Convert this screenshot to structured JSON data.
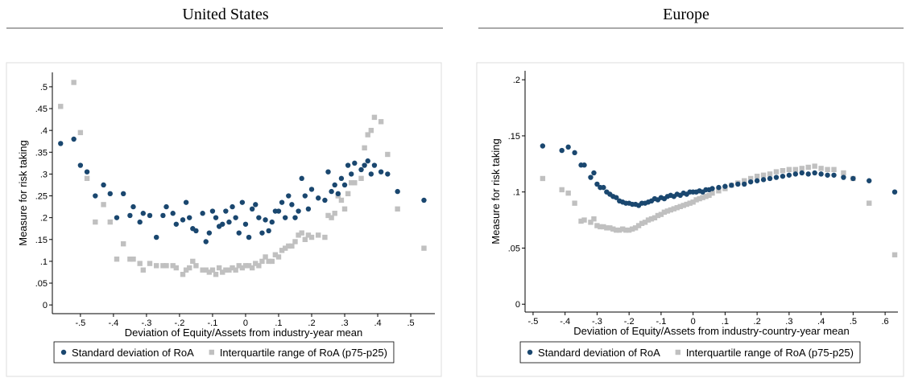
{
  "chart_data": [
    {
      "type": "scatter",
      "title": "United States",
      "x_label": "Deviation of Equity/Assets from industry-year mean",
      "y_label": "Measure for risk taking",
      "legend": "bottom",
      "x": [
        -0.56,
        -0.52,
        -0.5,
        -0.48,
        -0.455,
        -0.43,
        -0.41,
        -0.39,
        -0.37,
        -0.35,
        -0.34,
        -0.32,
        -0.31,
        -0.29,
        -0.27,
        -0.25,
        -0.24,
        -0.22,
        -0.21,
        -0.19,
        -0.18,
        -0.17,
        -0.16,
        -0.15,
        -0.13,
        -0.12,
        -0.11,
        -0.1,
        -0.09,
        -0.08,
        -0.07,
        -0.06,
        -0.05,
        -0.04,
        -0.03,
        -0.02,
        -0.01,
        0,
        0.01,
        0.02,
        0.03,
        0.04,
        0.05,
        0.06,
        0.07,
        0.08,
        0.09,
        0.1,
        0.11,
        0.12,
        0.13,
        0.14,
        0.15,
        0.16,
        0.17,
        0.18,
        0.19,
        0.2,
        0.22,
        0.24,
        0.25,
        0.26,
        0.27,
        0.28,
        0.29,
        0.3,
        0.31,
        0.32,
        0.33,
        0.35,
        0.36,
        0.37,
        0.38,
        0.39,
        0.41,
        0.43,
        0.46,
        0.54
      ],
      "series": [
        {
          "name": "Standard deviation of RoA",
          "color": "#1a476f",
          "marker": "circle",
          "values": [
            0.37,
            0.38,
            0.32,
            0.305,
            0.25,
            0.275,
            0.255,
            0.2,
            0.255,
            0.205,
            0.225,
            0.19,
            0.21,
            0.205,
            0.155,
            0.205,
            0.225,
            0.21,
            0.185,
            0.195,
            0.235,
            0.2,
            0.175,
            0.17,
            0.21,
            0.145,
            0.165,
            0.215,
            0.2,
            0.18,
            0.185,
            0.215,
            0.19,
            0.225,
            0.2,
            0.165,
            0.235,
            0.185,
            0.155,
            0.22,
            0.23,
            0.2,
            0.165,
            0.195,
            0.17,
            0.19,
            0.215,
            0.215,
            0.235,
            0.2,
            0.25,
            0.23,
            0.2,
            0.215,
            0.29,
            0.25,
            0.22,
            0.265,
            0.245,
            0.24,
            0.305,
            0.26,
            0.275,
            0.255,
            0.29,
            0.275,
            0.32,
            0.3,
            0.325,
            0.31,
            0.32,
            0.33,
            0.3,
            0.32,
            0.305,
            0.3,
            0.26,
            0.24
          ]
        },
        {
          "name": "Interquartile range of RoA (p75-p25)",
          "color": "#c0c0c0",
          "marker": "square",
          "values": [
            0.455,
            0.51,
            0.395,
            0.29,
            0.19,
            0.23,
            0.19,
            0.105,
            0.14,
            0.105,
            0.105,
            0.095,
            0.08,
            0.095,
            0.09,
            0.09,
            0.09,
            0.09,
            0.085,
            0.07,
            0.08,
            0.085,
            0.1,
            0.09,
            0.08,
            0.08,
            0.075,
            0.08,
            0.07,
            0.085,
            0.075,
            0.08,
            0.08,
            0.085,
            0.08,
            0.09,
            0.085,
            0.09,
            0.09,
            0.085,
            0.095,
            0.09,
            0.1,
            0.11,
            0.1,
            0.1,
            0.115,
            0.11,
            0.125,
            0.13,
            0.135,
            0.135,
            0.145,
            0.16,
            0.165,
            0.15,
            0.16,
            0.155,
            0.16,
            0.155,
            0.205,
            0.2,
            0.21,
            0.25,
            0.24,
            0.22,
            0.255,
            0.28,
            0.28,
            0.29,
            0.36,
            0.39,
            0.4,
            0.43,
            0.42,
            0.345,
            0.22,
            0.13
          ]
        }
      ],
      "xlim": [
        -0.585,
        0.573
      ],
      "ylim": [
        -0.02,
        0.533
      ],
      "xticks": [
        {
          "value": -0.5,
          "label": "-.5"
        },
        {
          "value": -0.4,
          "label": "-.4"
        },
        {
          "value": -0.3,
          "label": "-.3"
        },
        {
          "value": -0.2,
          "label": "-.2"
        },
        {
          "value": -0.1,
          "label": "-.1"
        },
        0,
        {
          "value": 0.1,
          "label": ".1"
        },
        {
          "value": 0.2,
          "label": ".2"
        },
        {
          "value": 0.3,
          "label": ".3"
        },
        {
          "value": 0.4,
          "label": ".4"
        },
        {
          "value": 0.5,
          "label": ".5"
        }
      ],
      "yticks": [
        0,
        {
          "value": 0.05,
          "label": ".05"
        },
        {
          "value": 0.1,
          "label": ".1"
        },
        {
          "value": 0.15,
          "label": ".15"
        },
        {
          "value": 0.2,
          "label": ".2"
        },
        {
          "value": 0.25,
          "label": ".25"
        },
        {
          "value": 0.3,
          "label": ".3"
        },
        {
          "value": 0.35,
          "label": ".35"
        },
        {
          "value": 0.4,
          "label": ".4"
        },
        {
          "value": 0.45,
          "label": ".45"
        },
        {
          "value": 0.5,
          "label": ".5"
        }
      ]
    },
    {
      "type": "scatter",
      "title": "Europe",
      "x_label": "Deviation of Equity/Assets from industry-country-year mean",
      "y_label": "Measure for risk taking",
      "legend": "bottom",
      "x": [
        -0.47,
        -0.41,
        -0.39,
        -0.37,
        -0.35,
        -0.34,
        -0.32,
        -0.31,
        -0.3,
        -0.29,
        -0.28,
        -0.27,
        -0.26,
        -0.25,
        -0.24,
        -0.23,
        -0.22,
        -0.21,
        -0.2,
        -0.19,
        -0.18,
        -0.17,
        -0.16,
        -0.15,
        -0.14,
        -0.13,
        -0.12,
        -0.11,
        -0.1,
        -0.09,
        -0.08,
        -0.07,
        -0.06,
        -0.05,
        -0.04,
        -0.03,
        -0.02,
        -0.01,
        0,
        0.01,
        0.02,
        0.03,
        0.04,
        0.05,
        0.06,
        0.08,
        0.1,
        0.12,
        0.14,
        0.16,
        0.18,
        0.2,
        0.22,
        0.24,
        0.26,
        0.28,
        0.3,
        0.32,
        0.34,
        0.36,
        0.38,
        0.4,
        0.42,
        0.44,
        0.47,
        0.5,
        0.55,
        0.63
      ],
      "series": [
        {
          "name": "Standard deviation of RoA",
          "color": "#1a476f",
          "marker": "circle",
          "values": [
            0.141,
            0.137,
            0.14,
            0.135,
            0.124,
            0.124,
            0.113,
            0.117,
            0.107,
            0.104,
            0.104,
            0.1,
            0.098,
            0.096,
            0.095,
            0.092,
            0.091,
            0.09,
            0.09,
            0.089,
            0.089,
            0.088,
            0.09,
            0.09,
            0.091,
            0.092,
            0.094,
            0.093,
            0.095,
            0.094,
            0.096,
            0.097,
            0.096,
            0.098,
            0.097,
            0.099,
            0.098,
            0.1,
            0.1,
            0.1,
            0.101,
            0.1,
            0.102,
            0.102,
            0.103,
            0.104,
            0.105,
            0.106,
            0.107,
            0.107,
            0.109,
            0.11,
            0.111,
            0.112,
            0.113,
            0.114,
            0.115,
            0.116,
            0.117,
            0.116,
            0.117,
            0.116,
            0.115,
            0.115,
            0.113,
            0.112,
            0.11,
            0.1
          ]
        },
        {
          "name": "Interquartile range of RoA (p75-p25)",
          "color": "#c0c0c0",
          "marker": "square",
          "values": [
            0.112,
            0.102,
            0.099,
            0.09,
            0.074,
            0.075,
            0.073,
            0.076,
            0.07,
            0.069,
            0.069,
            0.068,
            0.068,
            0.067,
            0.066,
            0.066,
            0.067,
            0.066,
            0.066,
            0.067,
            0.068,
            0.07,
            0.072,
            0.073,
            0.075,
            0.076,
            0.077,
            0.079,
            0.08,
            0.082,
            0.083,
            0.084,
            0.085,
            0.086,
            0.087,
            0.088,
            0.089,
            0.09,
            0.091,
            0.093,
            0.094,
            0.095,
            0.096,
            0.097,
            0.099,
            0.101,
            0.103,
            0.106,
            0.108,
            0.11,
            0.112,
            0.114,
            0.115,
            0.116,
            0.118,
            0.119,
            0.12,
            0.12,
            0.121,
            0.122,
            0.123,
            0.121,
            0.12,
            0.12,
            0.117,
            0.112,
            0.09,
            0.044
          ]
        }
      ],
      "xlim": [
        -0.525,
        0.64
      ],
      "ylim": [
        -0.007,
        0.208
      ],
      "xticks": [
        {
          "value": -0.5,
          "label": "-.5"
        },
        {
          "value": -0.4,
          "label": "-.4"
        },
        {
          "value": -0.3,
          "label": "-.3"
        },
        {
          "value": -0.2,
          "label": "-.2"
        },
        {
          "value": -0.1,
          "label": "-.1"
        },
        0,
        {
          "value": 0.1,
          "label": ".1"
        },
        {
          "value": 0.2,
          "label": ".2"
        },
        {
          "value": 0.3,
          "label": ".3"
        },
        {
          "value": 0.4,
          "label": ".4"
        },
        {
          "value": 0.5,
          "label": ".5"
        },
        {
          "value": 0.6,
          "label": ".6"
        }
      ],
      "yticks": [
        0,
        {
          "value": 0.05,
          "label": ".05"
        },
        {
          "value": 0.1,
          "label": ".1"
        },
        {
          "value": 0.15,
          "label": ".15"
        },
        {
          "value": 0.2,
          "label": ".2"
        }
      ]
    }
  ]
}
